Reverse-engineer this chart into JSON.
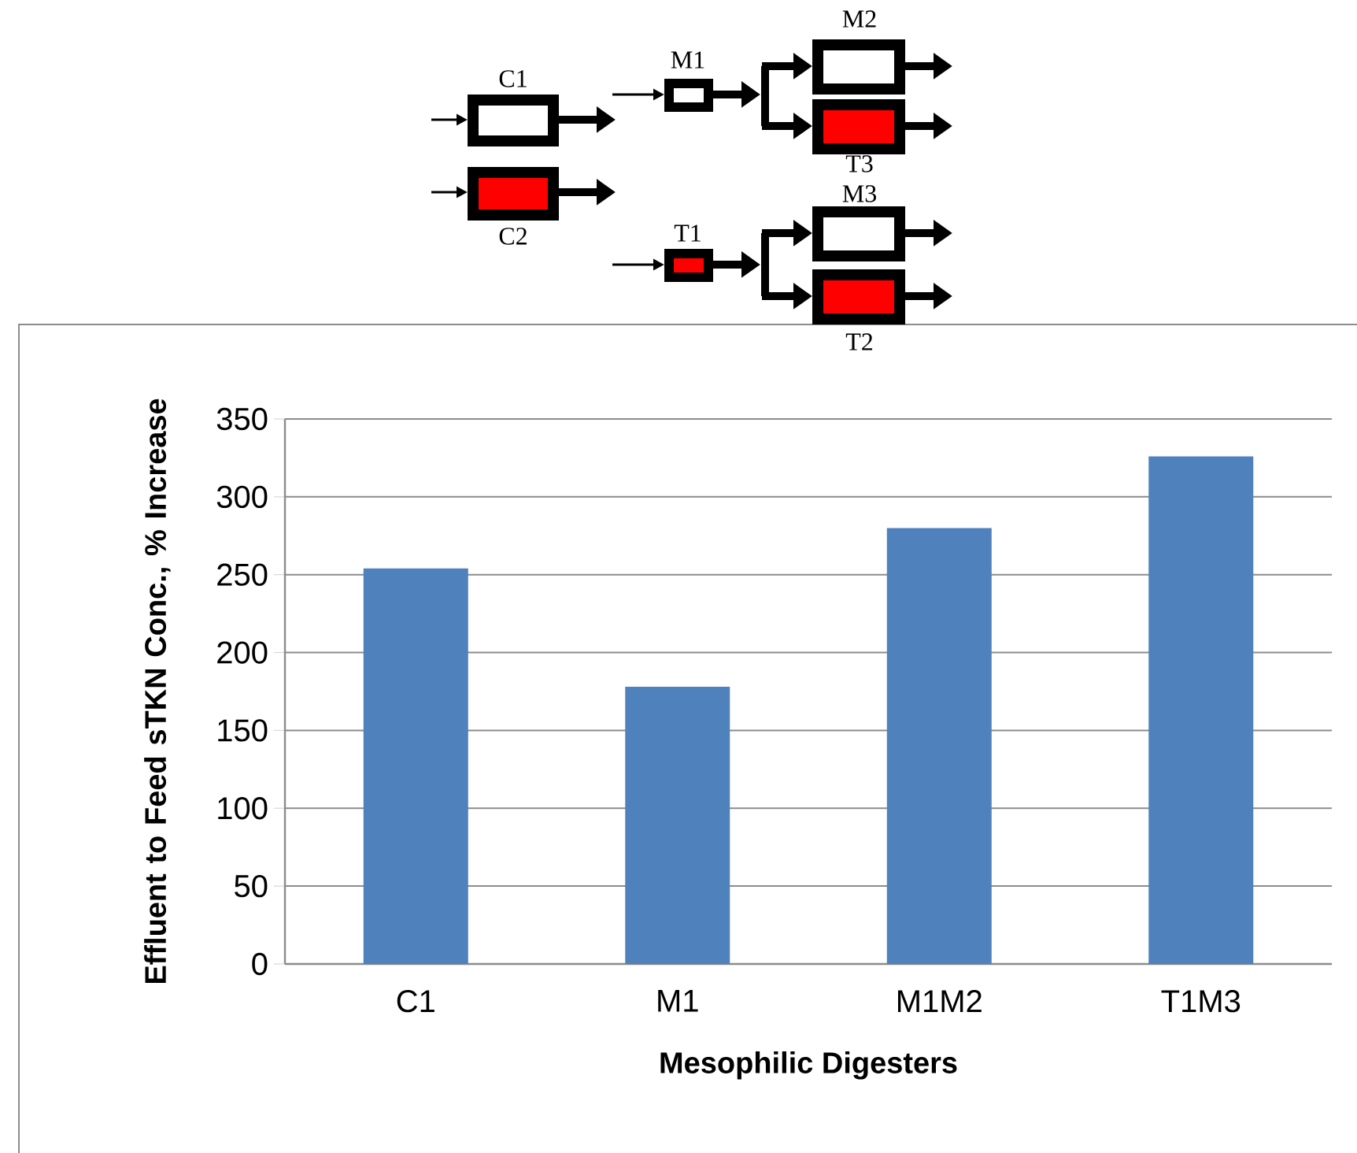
{
  "chart_data": {
    "type": "bar",
    "xlabel": "Mesophilic Digesters",
    "ylabel": "Effluent to Feed sTKN Conc., % Increase",
    "categories": [
      "C1",
      "M1",
      "M1M2",
      "T1M3"
    ],
    "values": [
      254,
      178,
      280,
      326
    ],
    "color": "#4f81bd",
    "ylim": [
      0,
      350
    ],
    "yticks": [
      0,
      50,
      100,
      150,
      200,
      250,
      300,
      350
    ],
    "grid": "y",
    "legend": false,
    "annotations": [
      "C1",
      "C2",
      "M1",
      "T1",
      "M2",
      "T3",
      "M3",
      "T2"
    ]
  }
}
